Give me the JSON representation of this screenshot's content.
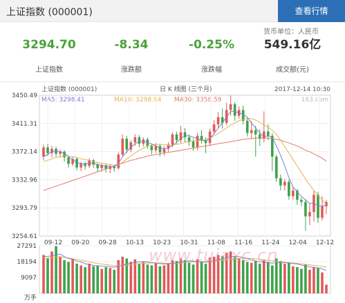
{
  "header": {
    "title": "上证指数  (000001)",
    "button_label": "查看行情"
  },
  "currency_unit": "货币单位：人民币",
  "stats": [
    {
      "value": "3294.70",
      "label": "上证指数"
    },
    {
      "value": "-8.34",
      "label": "涨跌额"
    },
    {
      "value": "-0.25%",
      "label": "涨跌幅"
    },
    {
      "value": "549.16亿",
      "label": "成交额(元)"
    }
  ],
  "chart_data": {
    "type": "candlestick",
    "title": "日 K 线图 (三个月)",
    "index_label": "上证指数 (000001)",
    "timestamp": "2017-12-14 10:30",
    "source": "163.com",
    "ma_legend": [
      {
        "text": "MA5: 3298.41",
        "color": "#7d7dd6"
      },
      {
        "text": "MA10: 3298.94",
        "color": "#e6b34d"
      },
      {
        "text": "MA30: 3358.59",
        "color": "#e07a6a"
      }
    ],
    "y_ticks": [
      "3450.49",
      "3411.31",
      "3372.14",
      "3332.96",
      "3293.79",
      "3254.61"
    ],
    "ylim": [
      3254.61,
      3450.49
    ],
    "x_ticks": [
      "09-12",
      "09-20",
      "09-28",
      "10-13",
      "10-23",
      "10-31",
      "11-08",
      "11-16",
      "11-24",
      "12-04",
      "12-12"
    ],
    "candles": [
      [
        3365,
        3378,
        3360,
        3382
      ],
      [
        3378,
        3370,
        3366,
        3383
      ],
      [
        3370,
        3376,
        3364,
        3380
      ],
      [
        3376,
        3369,
        3365,
        3379
      ],
      [
        3369,
        3372,
        3364,
        3375
      ],
      [
        3372,
        3364,
        3358,
        3374
      ],
      [
        3364,
        3355,
        3350,
        3366
      ],
      [
        3355,
        3362,
        3352,
        3365
      ],
      [
        3362,
        3350,
        3346,
        3364
      ],
      [
        3350,
        3356,
        3345,
        3358
      ],
      [
        3356,
        3352,
        3347,
        3358
      ],
      [
        3352,
        3360,
        3349,
        3363
      ],
      [
        3360,
        3354,
        3349,
        3362
      ],
      [
        3354,
        3349,
        3344,
        3356
      ],
      [
        3349,
        3353,
        3344,
        3355
      ],
      [
        3353,
        3348,
        3343,
        3355
      ],
      [
        3348,
        3352,
        3342,
        3355
      ],
      [
        3352,
        3349,
        3344,
        3354
      ],
      [
        3349,
        3368,
        3347,
        3371
      ],
      [
        3368,
        3390,
        3366,
        3396
      ],
      [
        3390,
        3375,
        3370,
        3394
      ],
      [
        3375,
        3385,
        3371,
        3388
      ],
      [
        3385,
        3392,
        3380,
        3396
      ],
      [
        3392,
        3383,
        3378,
        3395
      ],
      [
        3383,
        3389,
        3379,
        3392
      ],
      [
        3389,
        3380,
        3376,
        3392
      ],
      [
        3380,
        3374,
        3368,
        3383
      ],
      [
        3374,
        3380,
        3370,
        3384
      ],
      [
        3380,
        3371,
        3365,
        3383
      ],
      [
        3371,
        3376,
        3366,
        3380
      ],
      [
        3376,
        3382,
        3372,
        3385
      ],
      [
        3382,
        3396,
        3378,
        3399
      ],
      [
        3396,
        3388,
        3383,
        3400
      ],
      [
        3388,
        3399,
        3384,
        3408
      ],
      [
        3399,
        3392,
        3385,
        3405
      ],
      [
        3392,
        3386,
        3380,
        3396
      ],
      [
        3386,
        3378,
        3373,
        3390
      ],
      [
        3378,
        3394,
        3374,
        3398
      ],
      [
        3394,
        3388,
        3383,
        3402
      ],
      [
        3388,
        3384,
        3370,
        3392
      ],
      [
        3384,
        3400,
        3380,
        3404
      ],
      [
        3400,
        3410,
        3396,
        3416
      ],
      [
        3410,
        3420,
        3405,
        3427
      ],
      [
        3420,
        3412,
        3404,
        3432
      ],
      [
        3412,
        3430,
        3409,
        3440
      ],
      [
        3430,
        3438,
        3422,
        3450
      ],
      [
        3438,
        3422,
        3415,
        3441
      ],
      [
        3422,
        3430,
        3418,
        3435
      ],
      [
        3430,
        3415,
        3410,
        3436
      ],
      [
        3415,
        3398,
        3393,
        3420
      ],
      [
        3398,
        3402,
        3390,
        3414
      ],
      [
        3402,
        3396,
        3365,
        3408
      ],
      [
        3396,
        3390,
        3380,
        3403
      ],
      [
        3390,
        3400,
        3385,
        3428
      ],
      [
        3400,
        3394,
        3388,
        3410
      ],
      [
        3394,
        3365,
        3345,
        3398
      ],
      [
        3365,
        3335,
        3330,
        3368
      ],
      [
        3335,
        3325,
        3318,
        3340
      ],
      [
        3325,
        3330,
        3318,
        3334
      ],
      [
        3330,
        3310,
        3305,
        3333
      ],
      [
        3310,
        3318,
        3305,
        3322
      ],
      [
        3318,
        3305,
        3298,
        3320
      ],
      [
        3305,
        3302,
        3296,
        3308
      ],
      [
        3302,
        3282,
        3262,
        3306
      ],
      [
        3282,
        3288,
        3270,
        3300
      ],
      [
        3288,
        3312,
        3275,
        3318
      ],
      [
        3312,
        3280,
        3273,
        3316
      ],
      [
        3280,
        3296,
        3276,
        3310
      ],
      [
        3296,
        3302,
        3285,
        3305
      ]
    ],
    "ma5": [
      3365,
      3368,
      3372,
      3373,
      3372,
      3370,
      3365,
      3361,
      3357,
      3355,
      3355,
      3356,
      3356,
      3354,
      3353,
      3352,
      3351,
      3351,
      3356,
      3365,
      3372,
      3378,
      3383,
      3386,
      3386,
      3385,
      3383,
      3380,
      3377,
      3376,
      3377,
      3381,
      3385,
      3390,
      3394,
      3394,
      3392,
      3390,
      3388,
      3387,
      3390,
      3397,
      3405,
      3412,
      3420,
      3428,
      3428,
      3426,
      3424,
      3420,
      3412,
      3405,
      3398,
      3393,
      3394,
      3392,
      3380,
      3367,
      3352,
      3336,
      3323,
      3316,
      3310,
      3305,
      3300,
      3300,
      3297,
      3296,
      3298
    ],
    "ma10": [
      3358,
      3360,
      3362,
      3364,
      3365,
      3366,
      3366,
      3365,
      3364,
      3362,
      3361,
      3360,
      3358,
      3357,
      3356,
      3355,
      3354,
      3353,
      3354,
      3357,
      3362,
      3366,
      3370,
      3374,
      3377,
      3380,
      3381,
      3382,
      3382,
      3382,
      3381,
      3381,
      3382,
      3383,
      3385,
      3386,
      3387,
      3387,
      3388,
      3389,
      3391,
      3394,
      3397,
      3401,
      3405,
      3409,
      3412,
      3415,
      3417,
      3418,
      3418,
      3416,
      3413,
      3409,
      3406,
      3402,
      3396,
      3388,
      3379,
      3370,
      3361,
      3352,
      3343,
      3334,
      3326,
      3318,
      3311,
      3305,
      3298
    ],
    "ma30": [
      3318,
      3320,
      3322,
      3324,
      3326,
      3328,
      3330,
      3332,
      3334,
      3336,
      3338,
      3340,
      3342,
      3344,
      3346,
      3348,
      3350,
      3352,
      3354,
      3356,
      3358,
      3360,
      3361,
      3363,
      3364,
      3366,
      3367,
      3368,
      3369,
      3370,
      3371,
      3372,
      3373,
      3374,
      3375,
      3376,
      3377,
      3378,
      3379,
      3380,
      3381,
      3382,
      3383,
      3384,
      3385,
      3386,
      3387,
      3388,
      3389,
      3390,
      3390,
      3391,
      3391,
      3391,
      3391,
      3390,
      3389,
      3388,
      3386,
      3384,
      3382,
      3380,
      3377,
      3374,
      3372,
      3369,
      3366,
      3363,
      3358.59
    ],
    "volume": {
      "y_ticks": [
        "27291",
        "18194",
        "9097"
      ],
      "ylim": [
        0,
        27291
      ],
      "unit": "万手",
      "bars": [
        22000,
        20000,
        24000,
        27000,
        21000,
        19000,
        18000,
        20000,
        17000,
        16000,
        15000,
        17000,
        15500,
        16000,
        14000,
        15000,
        14500,
        13500,
        19000,
        21000,
        20000,
        18000,
        19500,
        17000,
        18000,
        16500,
        16000,
        17500,
        15500,
        16000,
        17000,
        19000,
        18500,
        20000,
        19000,
        17500,
        16500,
        19500,
        18000,
        17000,
        20500,
        21000,
        22000,
        21500,
        23000,
        24000,
        21000,
        20000,
        19000,
        18000,
        17500,
        18500,
        17000,
        19000,
        18000,
        16000,
        20000,
        18500,
        17000,
        17500,
        15500,
        15000,
        14000,
        16500,
        13500,
        15000,
        14500,
        12000,
        5000
      ],
      "ma5": [
        21000,
        21200,
        21500,
        22000,
        22500,
        21000,
        20000,
        19500,
        18500,
        18000,
        17000,
        16500,
        16000,
        15800,
        15600,
        15500,
        15200,
        15000,
        15500,
        16200,
        16800,
        17300,
        17800,
        18000,
        18200,
        18000,
        17600,
        17400,
        17000,
        16800,
        16900,
        17200,
        17500,
        18000,
        18500,
        18600,
        18400,
        18200,
        18000,
        17900,
        18000,
        18500,
        19200,
        19800,
        20500,
        21000,
        21200,
        21000,
        20500,
        20000,
        19200,
        18600,
        18000,
        17800,
        17600,
        17300,
        17500,
        17700,
        17600,
        17400,
        17100,
        16800,
        16200,
        15800,
        15200,
        14900,
        14500,
        14000,
        13000
      ],
      "ma10": [
        20000,
        20200,
        20500,
        20800,
        21000,
        20600,
        20200,
        19800,
        19400,
        19000,
        18500,
        18000,
        17500,
        17100,
        16800,
        16500,
        16200,
        15900,
        15800,
        15900,
        16100,
        16400,
        16700,
        17000,
        17200,
        17300,
        17400,
        17400,
        17400,
        17300,
        17200,
        17200,
        17300,
        17500,
        17700,
        17900,
        18000,
        18100,
        18200,
        18200,
        18300,
        18400,
        18700,
        19000,
        19300,
        19600,
        19800,
        20000,
        20100,
        20100,
        20000,
        19800,
        19500,
        19200,
        18900,
        18600,
        18300,
        18000,
        17800,
        17600,
        17400,
        17200,
        16900,
        16600,
        16300,
        16000,
        15700,
        15400,
        15000
      ]
    }
  }
}
